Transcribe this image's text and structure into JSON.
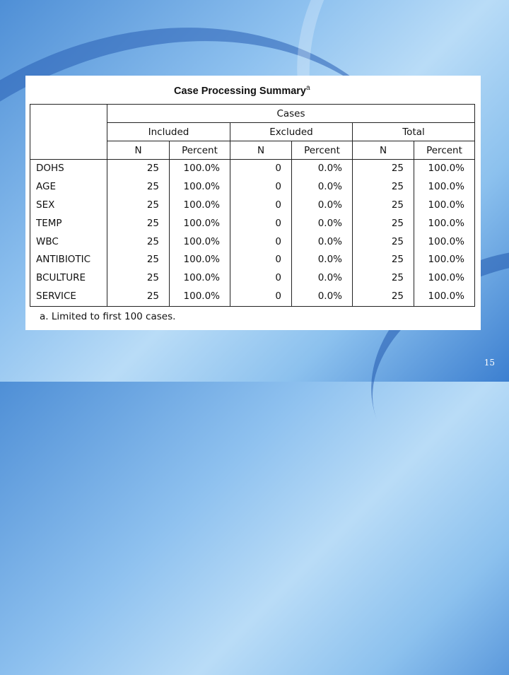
{
  "table": {
    "title": "Case Processing Summary",
    "title_superscript": "a",
    "header_group": "Cases",
    "subgroups": [
      "Included",
      "Excluded",
      "Total"
    ],
    "columns": [
      "N",
      "Percent",
      "N",
      "Percent",
      "N",
      "Percent"
    ],
    "rows": [
      {
        "label": "DOHS",
        "values": [
          "25",
          "100.0%",
          "0",
          "0.0%",
          "25",
          "100.0%"
        ]
      },
      {
        "label": "AGE",
        "values": [
          "25",
          "100.0%",
          "0",
          "0.0%",
          "25",
          "100.0%"
        ]
      },
      {
        "label": "SEX",
        "values": [
          "25",
          "100.0%",
          "0",
          "0.0%",
          "25",
          "100.0%"
        ]
      },
      {
        "label": "TEMP",
        "values": [
          "25",
          "100.0%",
          "0",
          "0.0%",
          "25",
          "100.0%"
        ]
      },
      {
        "label": "WBC",
        "values": [
          "25",
          "100.0%",
          "0",
          "0.0%",
          "25",
          "100.0%"
        ]
      },
      {
        "label": "ANTIBIOTIC",
        "values": [
          "25",
          "100.0%",
          "0",
          "0.0%",
          "25",
          "100.0%"
        ]
      },
      {
        "label": "BCULTURE",
        "values": [
          "25",
          "100.0%",
          "0",
          "0.0%",
          "25",
          "100.0%"
        ]
      },
      {
        "label": "SERVICE",
        "values": [
          "25",
          "100.0%",
          "0",
          "0.0%",
          "25",
          "100.0%"
        ]
      }
    ],
    "footnote": "a. Limited to first 100 cases."
  },
  "slide": {
    "page_number": "15"
  }
}
